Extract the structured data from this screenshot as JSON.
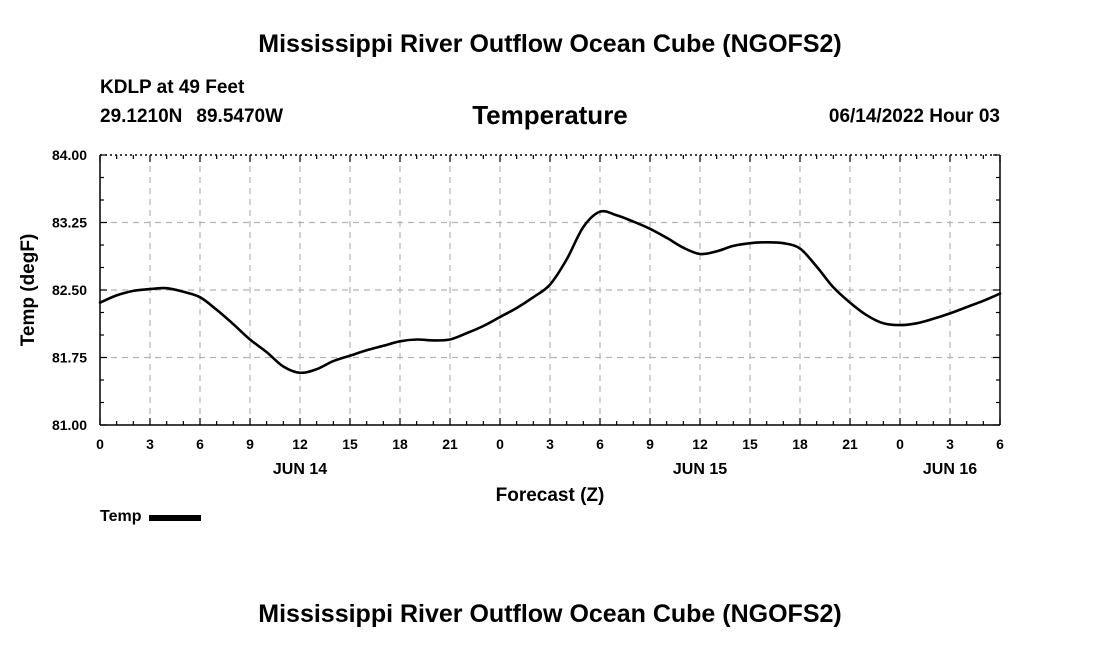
{
  "header": {
    "title": "Mississippi River Outflow Ocean Cube (NGOFS2)",
    "station": "KDLP at 49 Feet",
    "latitude": "29.1210N",
    "longitude": "89.5470W",
    "subtitle": "Temperature",
    "datetime": "06/14/2022 Hour 03"
  },
  "footer": {
    "title": "Mississippi River Outflow Ocean Cube (NGOFS2)"
  },
  "chart_data": {
    "type": "line",
    "title": "Temperature",
    "xlabel": "Forecast (Z)",
    "ylabel": "Temp (degF)",
    "xlim": [
      0,
      54
    ],
    "ylim": [
      81.0,
      84.0
    ],
    "x_unit": "hours from Jun 14 00Z",
    "x_ticks": [
      {
        "h": 0,
        "label": "0"
      },
      {
        "h": 3,
        "label": "3"
      },
      {
        "h": 6,
        "label": "6"
      },
      {
        "h": 9,
        "label": "9"
      },
      {
        "h": 12,
        "label": "12"
      },
      {
        "h": 15,
        "label": "15"
      },
      {
        "h": 18,
        "label": "18"
      },
      {
        "h": 21,
        "label": "21"
      },
      {
        "h": 24,
        "label": "0"
      },
      {
        "h": 27,
        "label": "3"
      },
      {
        "h": 30,
        "label": "6"
      },
      {
        "h": 33,
        "label": "9"
      },
      {
        "h": 36,
        "label": "12"
      },
      {
        "h": 39,
        "label": "15"
      },
      {
        "h": 42,
        "label": "18"
      },
      {
        "h": 45,
        "label": "21"
      },
      {
        "h": 48,
        "label": "0"
      },
      {
        "h": 51,
        "label": "3"
      },
      {
        "h": 54,
        "label": "6"
      }
    ],
    "date_labels": [
      {
        "h": 12,
        "label": "JUN 14"
      },
      {
        "h": 36,
        "label": "JUN 15"
      },
      {
        "h": 51,
        "label": "JUN 16"
      }
    ],
    "y_ticks": [
      "81.00",
      "81.75",
      "82.50",
      "83.25",
      "84.00"
    ],
    "grid": true,
    "legend": "bottom-left",
    "series": [
      {
        "name": "Temp",
        "color": "#000000",
        "x": [
          0,
          1,
          2,
          3,
          4,
          5,
          6,
          7,
          8,
          9,
          10,
          11,
          12,
          13,
          14,
          15,
          16,
          17,
          18,
          19,
          20,
          21,
          22,
          23,
          24,
          25,
          26,
          27,
          28,
          29,
          30,
          31,
          32,
          33,
          34,
          35,
          36,
          37,
          38,
          39,
          40,
          41,
          42,
          43,
          44,
          45,
          46,
          47,
          48,
          49,
          50,
          51,
          52,
          53,
          54
        ],
        "values": [
          82.36,
          82.44,
          82.49,
          82.51,
          82.52,
          82.48,
          82.42,
          82.28,
          82.12,
          81.95,
          81.81,
          81.65,
          81.58,
          81.62,
          81.71,
          81.77,
          81.83,
          81.88,
          81.93,
          81.95,
          81.94,
          81.95,
          82.02,
          82.1,
          82.2,
          82.3,
          82.42,
          82.56,
          82.84,
          83.2,
          83.37,
          83.33,
          83.26,
          83.18,
          83.08,
          82.97,
          82.9,
          82.93,
          82.99,
          83.02,
          83.03,
          83.02,
          82.96,
          82.76,
          82.53,
          82.36,
          82.22,
          82.13,
          82.11,
          82.13,
          82.18,
          82.24,
          82.31,
          82.38,
          82.46
        ]
      }
    ]
  }
}
